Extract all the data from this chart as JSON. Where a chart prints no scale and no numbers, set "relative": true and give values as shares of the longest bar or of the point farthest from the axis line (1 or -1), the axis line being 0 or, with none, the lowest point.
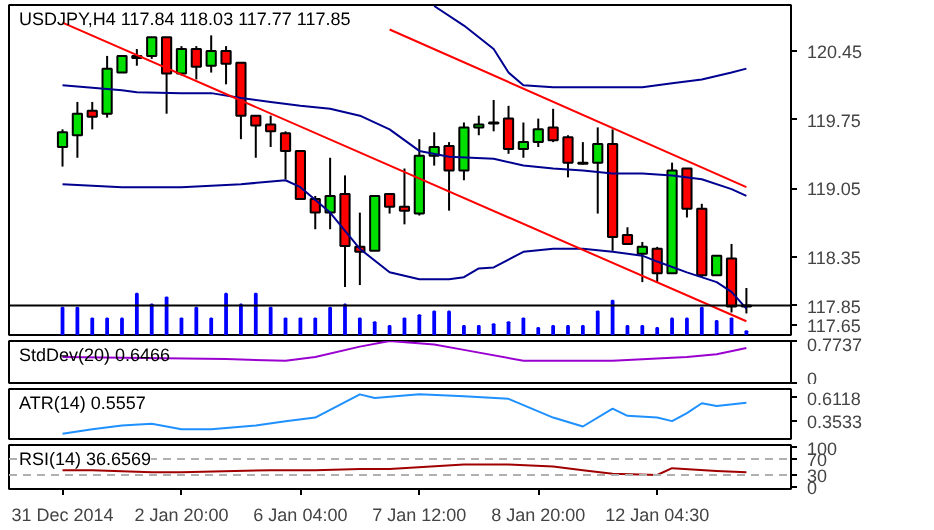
{
  "chart_data": [
    {
      "type": "candlestick",
      "title": "USDJPY,H4 117.84 118.03 117.77 117.85",
      "categories": [
        null,
        null,
        null,
        null,
        null,
        null,
        null,
        null,
        null,
        null,
        null,
        null,
        null,
        null,
        null,
        null,
        null,
        null,
        null,
        null,
        null,
        null,
        null,
        null,
        null,
        null,
        null,
        null,
        null,
        null,
        null,
        null,
        null,
        null,
        null,
        null,
        null,
        null,
        null,
        null,
        null,
        null,
        null,
        null,
        null,
        null,
        null
      ],
      "ohlc": [
        [
          119.47,
          119.65,
          119.27,
          119.62
        ],
        [
          119.59,
          119.93,
          119.36,
          119.81
        ],
        [
          119.84,
          119.93,
          119.65,
          119.78
        ],
        [
          119.81,
          120.4,
          119.77,
          120.27
        ],
        [
          120.23,
          120.4,
          120.23,
          120.4
        ],
        [
          120.4,
          120.47,
          120.3,
          120.38
        ],
        [
          120.4,
          120.59,
          120.37,
          120.59
        ],
        [
          120.59,
          120.59,
          119.81,
          120.22
        ],
        [
          120.22,
          120.5,
          120.2,
          120.47
        ],
        [
          120.47,
          120.5,
          120.16,
          120.29
        ],
        [
          120.3,
          120.61,
          120.23,
          120.45
        ],
        [
          120.45,
          120.5,
          120.11,
          120.32
        ],
        [
          120.33,
          120.33,
          119.55,
          119.79
        ],
        [
          119.79,
          119.79,
          119.36,
          119.69
        ],
        [
          119.7,
          119.79,
          119.47,
          119.63
        ],
        [
          119.61,
          119.63,
          119.14,
          119.43
        ],
        [
          119.43,
          119.43,
          118.94,
          118.94
        ],
        [
          118.94,
          118.97,
          118.63,
          118.8
        ],
        [
          118.8,
          119.36,
          118.63,
          118.97
        ],
        [
          118.99,
          119.18,
          118.04,
          118.46
        ],
        [
          118.45,
          118.8,
          118.06,
          118.4
        ],
        [
          118.41,
          118.97,
          118.41,
          118.97
        ],
        [
          118.99,
          118.99,
          118.79,
          118.86
        ],
        [
          118.86,
          119.25,
          118.68,
          118.82
        ],
        [
          118.79,
          119.55,
          118.77,
          119.38
        ],
        [
          119.38,
          119.62,
          119.28,
          119.47
        ],
        [
          119.48,
          119.52,
          118.82,
          119.23
        ],
        [
          119.23,
          119.72,
          119.13,
          119.67
        ],
        [
          119.67,
          119.79,
          119.59,
          119.7
        ],
        [
          119.71,
          119.95,
          119.63,
          119.72
        ],
        [
          119.76,
          119.89,
          119.4,
          119.45
        ],
        [
          119.45,
          119.72,
          119.36,
          119.52
        ],
        [
          119.52,
          119.76,
          119.47,
          119.65
        ],
        [
          119.67,
          119.86,
          119.52,
          119.54
        ],
        [
          119.57,
          119.59,
          119.16,
          119.31
        ],
        [
          119.31,
          119.52,
          119.29,
          119.3
        ],
        [
          119.31,
          119.67,
          118.79,
          119.5
        ],
        [
          119.5,
          119.65,
          118.41,
          118.55
        ],
        [
          118.57,
          118.65,
          118.48,
          118.48
        ],
        [
          118.38,
          118.5,
          118.09,
          118.45
        ],
        [
          118.43,
          118.45,
          118.09,
          118.18
        ],
        [
          118.18,
          119.31,
          118.18,
          119.23
        ],
        [
          119.25,
          119.25,
          118.75,
          118.84
        ],
        [
          118.84,
          118.89,
          118.14,
          118.16
        ],
        [
          118.16,
          118.36,
          118.16,
          118.36
        ],
        [
          118.33,
          118.48,
          117.78,
          117.84
        ],
        [
          117.84,
          118.03,
          117.77,
          117.85
        ]
      ],
      "colors": [
        "#00e000",
        "#00e000",
        "#ff0000",
        "#00e000",
        "#00e000",
        "#ff0000",
        "#00e000",
        "#ff0000",
        "#00e000",
        "#ff0000",
        "#00e000",
        "#ff0000",
        "#ff0000",
        "#ff0000",
        "#ff0000",
        "#ff0000",
        "#ff0000",
        "#ff0000",
        "#00e000",
        "#ff0000",
        "#ff0000",
        "#00e000",
        "#ff0000",
        "#ff0000",
        "#00e000",
        "#00e000",
        "#ff0000",
        "#00e000",
        "#00e000",
        "#00e000",
        "#ff0000",
        "#00e000",
        "#00e000",
        "#ff0000",
        "#ff0000",
        "#ff0000",
        "#00e000",
        "#ff0000",
        "#ff0000",
        "#00e000",
        "#ff0000",
        "#00e000",
        "#ff0000",
        "#ff0000",
        "#00e000",
        "#ff0000",
        "#00e000"
      ],
      "ylim": [
        117.55,
        120.92
      ],
      "yticks": [
        117.65,
        118.35,
        119.05,
        119.75,
        120.45
      ],
      "tick_labels": "y",
      "series": [
        {
          "type": "line",
          "color": "#000090",
          "values": [
            null,
            null,
            null,
            null,
            null,
            null,
            null,
            null,
            null,
            null,
            null,
            null,
            null,
            null,
            null,
            null,
            null,
            null,
            null,
            null,
            null,
            null,
            null,
            null,
            null,
            120.91,
            null,
            120.71,
            null,
            120.47,
            120.23,
            120.1,
            null,
            120.08,
            null,
            120.08,
            null,
            null,
            null,
            120.08,
            null,
            120.12,
            null,
            120.16,
            null,
            120.23,
            120.27
          ]
        },
        {
          "type": "line",
          "color": "#000090",
          "values": [
            120.1,
            null,
            null,
            null,
            120.05,
            120.03,
            null,
            null,
            120.02,
            null,
            120.02,
            null,
            119.97,
            null,
            119.93,
            null,
            119.89,
            null,
            119.86,
            null,
            119.79,
            null,
            119.65,
            null,
            119.43,
            null,
            119.37,
            null,
            null,
            119.35,
            null,
            119.28,
            null,
            119.25,
            null,
            119.23,
            null,
            119.2,
            null,
            119.2,
            null,
            119.18,
            null,
            119.14,
            null,
            119.04,
            118.97
          ]
        },
        {
          "type": "line",
          "color": "#000090",
          "values": [
            119.09,
            null,
            null,
            null,
            119.06,
            null,
            null,
            null,
            119.06,
            null,
            null,
            null,
            119.09,
            null,
            null,
            119.13,
            119.06,
            null,
            118.8,
            null,
            118.43,
            null,
            118.19,
            null,
            118.12,
            null,
            118.12,
            118.14,
            118.23,
            118.24,
            null,
            118.4,
            null,
            118.43,
            null,
            118.43,
            null,
            118.4,
            null,
            118.36,
            118.3,
            null,
            118.19,
            null,
            118.09,
            117.99,
            117.82
          ]
        },
        {
          "type": "line",
          "color": "#ff0000",
          "values": [
            120.74,
            null,
            null,
            null,
            null,
            null,
            null,
            null,
            null,
            null,
            null,
            null,
            null,
            null,
            null,
            null,
            null,
            null,
            null,
            null,
            null,
            null,
            null,
            null,
            null,
            null,
            null,
            null,
            null,
            null,
            null,
            null,
            null,
            null,
            null,
            null,
            null,
            null,
            null,
            null,
            null,
            null,
            null,
            null,
            null,
            null,
            117.69
          ]
        },
        {
          "type": "line",
          "color": "#ff0000",
          "values": [
            null,
            null,
            null,
            null,
            null,
            null,
            null,
            null,
            null,
            null,
            null,
            null,
            null,
            null,
            null,
            null,
            null,
            null,
            null,
            null,
            null,
            null,
            120.67,
            null,
            null,
            null,
            null,
            null,
            null,
            null,
            null,
            null,
            null,
            null,
            null,
            null,
            null,
            null,
            null,
            null,
            null,
            null,
            null,
            null,
            null,
            null,
            119.06
          ]
        }
      ],
      "ref_lines": [
        {
          "axis": "y",
          "value": 117.85,
          "label": "117.85",
          "color": "#000000"
        }
      ]
    },
    {
      "type": "bar",
      "relative": true,
      "color": "#0000ff",
      "categories": [
        null,
        null,
        null,
        null,
        null,
        null,
        null,
        null,
        null,
        null,
        null,
        null,
        null,
        null,
        null,
        null,
        null,
        null,
        null,
        null,
        null,
        null,
        null,
        null,
        null,
        null,
        null,
        null,
        null,
        null,
        null,
        null,
        null,
        null,
        null,
        null,
        null,
        null,
        null,
        null,
        null,
        null,
        null,
        null,
        null,
        null,
        null
      ],
      "values": [
        0.66,
        0.66,
        0.4,
        0.4,
        0.4,
        1,
        0.74,
        0.91,
        0.4,
        0.66,
        0.4,
        1,
        0.74,
        1,
        0.66,
        0.4,
        0.4,
        0.4,
        0.66,
        0.74,
        0.4,
        0.31,
        0.22,
        0.4,
        0.48,
        0.57,
        0.57,
        0.22,
        0.22,
        0.26,
        0.31,
        0.4,
        0.17,
        0.22,
        0.22,
        0.22,
        0.57,
        0.83,
        0.22,
        0.22,
        0.17,
        0.4,
        0.4,
        0.66,
        0.34,
        0.4,
        0.09
      ]
    },
    {
      "type": "line",
      "title": "StdDev(20) 0.6466",
      "categories": [
        null,
        null,
        null,
        null,
        null,
        null,
        null,
        null,
        null,
        null,
        null,
        null,
        null,
        null,
        null,
        null,
        null,
        null,
        null,
        null,
        null,
        null,
        null,
        null,
        null,
        null,
        null,
        null,
        null,
        null,
        null,
        null,
        null,
        null,
        null,
        null,
        null,
        null,
        null,
        null,
        null,
        null,
        null,
        null,
        null,
        null,
        null
      ],
      "ylim": [
        0,
        0.7737
      ],
      "yticks": [
        0,
        0.7737
      ],
      "tick_labels": "y",
      "series": [
        {
          "color": "#9a00d0",
          "values": [
            0.48,
            null,
            null,
            null,
            null,
            null,
            null,
            null,
            null,
            null,
            null,
            0.44,
            null,
            null,
            null,
            0.41,
            null,
            0.48,
            null,
            null,
            0.67,
            null,
            0.7737,
            null,
            null,
            0.71,
            null,
            0.61,
            null,
            null,
            null,
            0.41,
            null,
            null,
            null,
            null,
            null,
            0.41,
            null,
            null,
            null,
            null,
            0.48,
            null,
            0.53,
            null,
            0.6466
          ]
        }
      ]
    },
    {
      "type": "line",
      "title": "ATR(14) 0.5557",
      "categories": [
        null,
        null,
        null,
        null,
        null,
        null,
        null,
        null,
        null,
        null,
        null,
        null,
        null,
        null,
        null,
        null,
        null,
        null,
        null,
        null,
        null,
        null,
        null,
        null,
        null,
        null,
        null,
        null,
        null,
        null,
        null,
        null,
        null,
        null,
        null,
        null,
        null,
        null,
        null,
        null,
        null,
        null,
        null,
        null,
        null,
        null,
        null
      ],
      "ylim": [
        0.15,
        0.71
      ],
      "yticks": [
        0.3533,
        0.6118
      ],
      "tick_labels": "y",
      "series": [
        {
          "color": "#1e90ff",
          "values": [
            0.21,
            null,
            0.26,
            null,
            0.3,
            null,
            0.32,
            null,
            0.26,
            null,
            0.26,
            null,
            null,
            0.3,
            null,
            0.35,
            null,
            0.39,
            null,
            null,
            0.65,
            0.61,
            null,
            null,
            0.65,
            null,
            null,
            0.63,
            null,
            null,
            0.6,
            null,
            null,
            0.39,
            null,
            0.29,
            null,
            0.49,
            0.41,
            null,
            0.39,
            0.35,
            0.44,
            0.55,
            0.52,
            null,
            0.5557
          ]
        }
      ]
    },
    {
      "type": "line",
      "title": "RSI(14) 36.6569",
      "ylim": [
        -5,
        105
      ],
      "yticks": [
        0,
        30,
        70,
        100
      ],
      "categories": [
        "31 Dec 2014",
        null,
        null,
        null,
        null,
        null,
        null,
        null,
        "2 Jan 20:00",
        null,
        null,
        null,
        null,
        null,
        null,
        null,
        "6 Jan 04:00",
        null,
        null,
        null,
        null,
        null,
        null,
        null,
        "7 Jan 12:00",
        null,
        null,
        null,
        null,
        null,
        null,
        null,
        "8 Jan 20:00",
        null,
        null,
        null,
        null,
        null,
        null,
        null,
        "12 Jan 04:30",
        null,
        null,
        null,
        null,
        null,
        null
      ],
      "series": [
        {
          "color": "#a00000",
          "values": [
            42,
            null,
            42,
            null,
            null,
            null,
            37,
            null,
            37,
            null,
            null,
            null,
            null,
            null,
            42,
            null,
            null,
            42,
            null,
            null,
            45,
            null,
            45,
            null,
            null,
            null,
            null,
            56,
            null,
            null,
            56,
            null,
            null,
            51,
            null,
            42,
            null,
            33,
            null,
            null,
            30,
            47,
            null,
            null,
            40,
            null,
            36.6569
          ]
        }
      ],
      "ref_lines": [
        {
          "axis": "y",
          "value": 30,
          "line_style": "dashed",
          "color": "#b0b0b0"
        },
        {
          "axis": "y",
          "value": 70,
          "line_style": "dashed",
          "color": "#b0b0b0"
        }
      ]
    }
  ]
}
